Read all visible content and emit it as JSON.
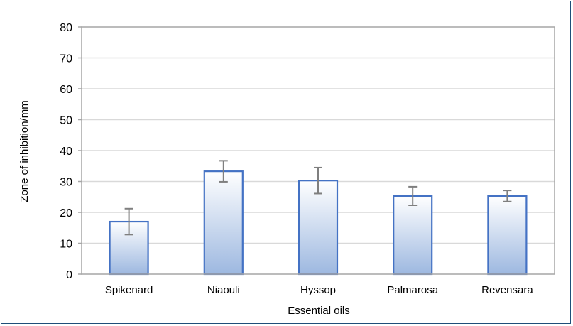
{
  "chart_data": {
    "type": "bar",
    "title": "",
    "xlabel": "Essential oils",
    "ylabel": "Zone of inhibition/mm",
    "categories": [
      "Spikenard",
      "Niaouli",
      "Hyssop",
      "Palmarosa",
      "Revensara"
    ],
    "values": [
      17,
      33.3,
      30.3,
      25.3,
      25.3
    ],
    "error": [
      4.2,
      3.4,
      4.2,
      3.0,
      1.8
    ],
    "ylim": [
      0,
      80
    ],
    "yticks": [
      0,
      10,
      20,
      30,
      40,
      50,
      60,
      70,
      80
    ],
    "grid": true,
    "legend": "none",
    "colors": {
      "bar_top": "#ffffff",
      "bar_bottom": "#9db8e0",
      "bar_border": "#4472c4",
      "error_bar": "#7f7f7f",
      "grid": "#d9d9d9",
      "axis": "#a6a6a6",
      "frame": "#1f4e79"
    }
  }
}
